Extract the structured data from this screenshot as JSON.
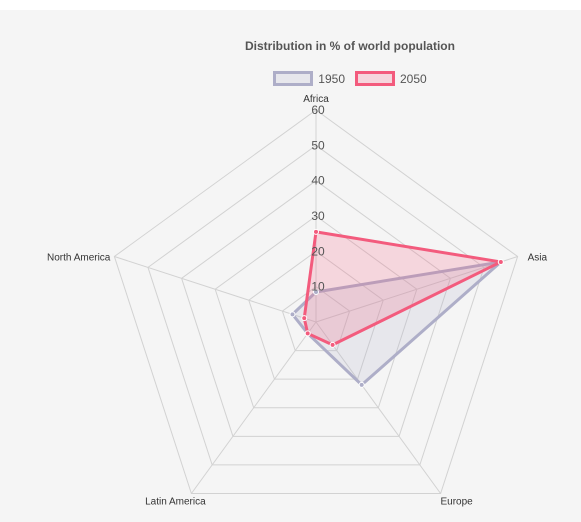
{
  "chart_data": {
    "type": "radar",
    "title": "Distribution in % of world population",
    "categories": [
      "Africa",
      "Asia",
      "Europe",
      "Latin America",
      "North America"
    ],
    "rlim": [
      0,
      60
    ],
    "ticks": [
      "10",
      "20",
      "30",
      "40",
      "50",
      "60"
    ],
    "grid": true,
    "legend_position": "top",
    "series": [
      {
        "name": "1950",
        "values": [
          8.5,
          55,
          22,
          4,
          7
        ],
        "stroke": "#aeaec8",
        "fill": "rgba(174,174,200,0.2)"
      },
      {
        "name": "2050",
        "values": [
          25.5,
          55,
          8,
          4,
          3.5
        ],
        "stroke": "#f35b7d",
        "fill": "rgba(243,91,125,0.2)"
      }
    ]
  }
}
